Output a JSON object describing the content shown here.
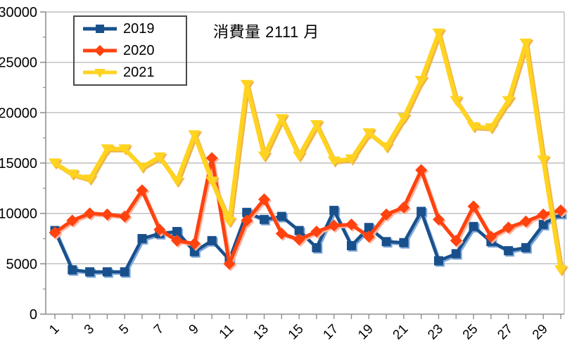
{
  "chart_data": {
    "type": "line",
    "title": "消費量 2111 月",
    "xlabel": "",
    "ylabel": "",
    "x": [
      1,
      2,
      3,
      4,
      5,
      6,
      7,
      8,
      9,
      10,
      11,
      12,
      13,
      14,
      15,
      16,
      17,
      18,
      19,
      20,
      21,
      22,
      23,
      24,
      25,
      26,
      27,
      28,
      29,
      30
    ],
    "x_tick_labels": [
      "1",
      "3",
      "5",
      "7",
      "9",
      "11",
      "13",
      "15",
      "17",
      "19",
      "21",
      "23",
      "25",
      "27",
      "29"
    ],
    "y_ticks": [
      0,
      5000,
      10000,
      15000,
      20000,
      25000,
      30000
    ],
    "y_tick_labels": [
      "0",
      "5000",
      "10000",
      "15000",
      "20000",
      "25000",
      "30000"
    ],
    "y_minor_step": 2500,
    "ylim": [
      0,
      30000
    ],
    "grid": true,
    "legend_position": "top-left",
    "series": [
      {
        "name": "2019",
        "marker": "square",
        "color": "#19508c",
        "edge_color": "#7fa8d9",
        "values": [
          8300,
          4400,
          4200,
          4200,
          4200,
          7500,
          8000,
          8200,
          6200,
          7300,
          5400,
          10100,
          9400,
          9700,
          8300,
          6600,
          10300,
          6800,
          8600,
          7200,
          7100,
          10200,
          5300,
          6000,
          8700,
          7200,
          6300,
          6600,
          8900,
          10000
        ]
      },
      {
        "name": "2020",
        "marker": "diamond",
        "color": "#ff420e",
        "edge_color": "#ffb39e",
        "values": [
          8100,
          9300,
          10000,
          9900,
          9700,
          12300,
          8400,
          7300,
          7000,
          15500,
          5000,
          9300,
          11400,
          8000,
          7400,
          8200,
          8800,
          8900,
          7700,
          9900,
          10600,
          14300,
          9400,
          7300,
          10700,
          7700,
          8600,
          9200,
          9900,
          10300
        ]
      },
      {
        "name": "2021",
        "marker": "triangle-down",
        "color": "#ffd320",
        "edge_color": "#eeb34a",
        "values": [
          15000,
          13900,
          13400,
          16400,
          16400,
          14600,
          15600,
          13200,
          17800,
          13200,
          9200,
          22800,
          15700,
          19400,
          15700,
          18800,
          15200,
          15400,
          18000,
          16600,
          19500,
          23200,
          27900,
          21200,
          18600,
          18500,
          21200,
          26900,
          15300,
          4400
        ]
      }
    ]
  },
  "colors": {
    "background": "#ffffff",
    "grid": "#bdbdbd",
    "axis": "#8f8f8f",
    "text": "#000000",
    "legend_border": "#4a4a4a"
  }
}
